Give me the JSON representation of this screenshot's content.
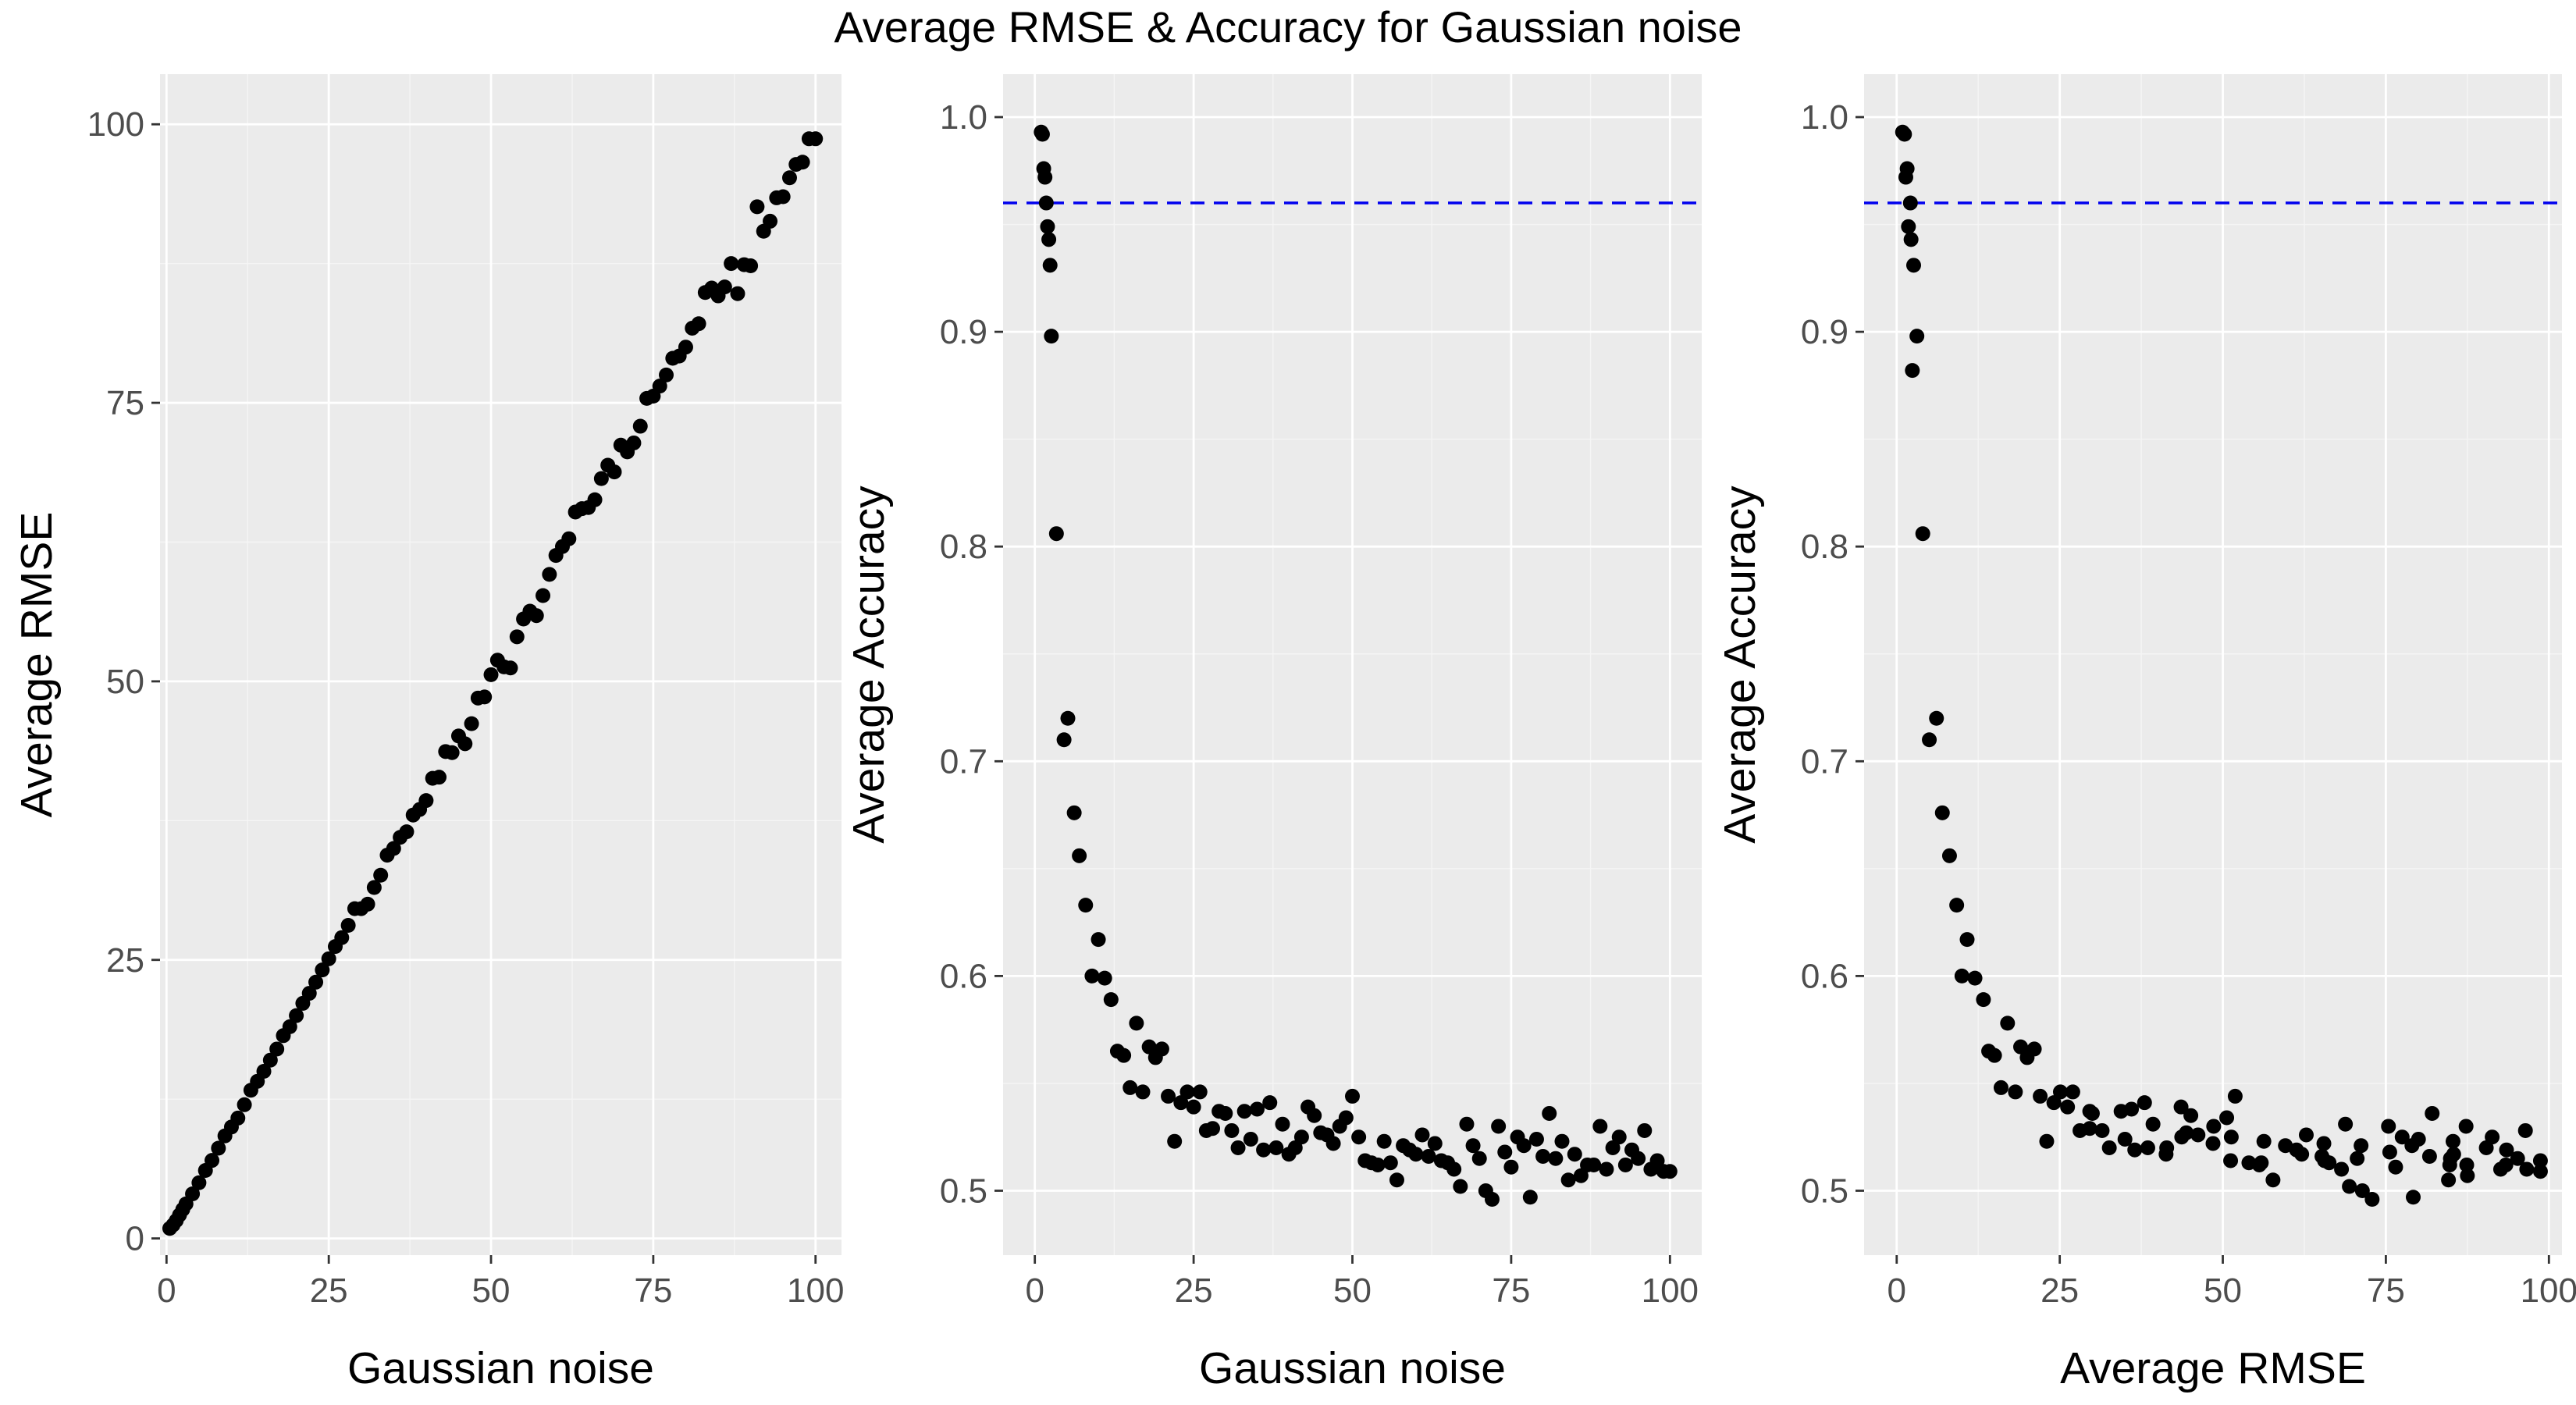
{
  "title": "Average RMSE & Accuracy for Gaussian noise",
  "colors": {
    "panel": "#ebebeb",
    "points": "#000000",
    "reference_line": "#0000ee",
    "text": "#4d4d4d"
  },
  "chart_data": [
    {
      "type": "scatter",
      "xlabel": "Gaussian noise",
      "ylabel": "Average RMSE",
      "xlim": [
        -1,
        104
      ],
      "ylim": [
        -1.5,
        104.5
      ],
      "xticks": [
        "0",
        "25",
        "50",
        "75",
        "100"
      ],
      "yticks": [
        "0",
        "25",
        "50",
        "75",
        "100"
      ],
      "grid": true,
      "points": {
        "x": [
          0.5,
          1,
          1.5,
          2,
          2.5,
          3,
          4,
          5,
          6,
          7,
          8,
          9,
          10,
          11,
          12,
          13,
          14,
          15,
          16,
          17,
          18,
          19,
          20,
          21,
          22,
          23,
          24,
          25,
          26,
          27,
          28,
          29,
          30,
          31,
          32,
          33,
          34,
          35,
          36,
          37,
          38,
          39,
          40,
          41,
          42,
          43,
          44,
          45,
          46,
          47,
          48,
          49,
          50,
          51,
          52,
          53,
          54,
          55,
          56,
          57,
          58,
          59,
          60,
          61,
          62,
          63,
          64,
          65,
          66,
          67,
          68,
          69,
          70,
          71,
          72,
          73,
          74,
          75,
          76,
          77,
          78,
          79,
          80,
          81,
          82,
          83,
          84,
          85,
          86,
          87,
          88,
          89,
          90,
          91,
          92,
          93,
          94,
          95,
          96,
          97,
          98,
          99,
          100
        ],
        "y": [
          0.9,
          1.2,
          1.6,
          2.1,
          2.6,
          3.1,
          4.0,
          5.0,
          6.1,
          7.0,
          8.1,
          9.2,
          10.0,
          10.8,
          12.0,
          13.3,
          14.1,
          15.0,
          16.0,
          17.0,
          18.2,
          19.0,
          20.0,
          21.1,
          22.0,
          23.0,
          24.1,
          25.1,
          26.2,
          27.0,
          28.1,
          29.6,
          29.6,
          30.0,
          31.5,
          32.6,
          34.4,
          35.0,
          36.0,
          36.5,
          38.0,
          38.5,
          39.3,
          41.3,
          41.4,
          43.7,
          43.6,
          45.1,
          44.4,
          46.2,
          48.5,
          48.6,
          50.6,
          51.9,
          51.3,
          51.2,
          54.0,
          55.6,
          56.3,
          55.9,
          57.7,
          59.6,
          61.3,
          62.1,
          62.8,
          65.2,
          65.5,
          65.6,
          66.3,
          68.2,
          69.4,
          68.8,
          71.2,
          70.6,
          71.4,
          72.9,
          75.4,
          75.6,
          76.5,
          77.5,
          79.0,
          79.2,
          80.0,
          81.7,
          82.1,
          84.9,
          85.3,
          84.6,
          85.4,
          87.5,
          84.8,
          87.4,
          87.3,
          92.6,
          90.4,
          91.3,
          93.4,
          93.5,
          95.2,
          96.4,
          96.6,
          98.7,
          98.7
        ]
      }
    },
    {
      "type": "scatter",
      "xlabel": "Gaussian noise",
      "ylabel": "Average Accuracy",
      "xlim": [
        -5,
        105
      ],
      "ylim": [
        0.47,
        1.02
      ],
      "xticks": [
        "0",
        "25",
        "50",
        "75",
        "100"
      ],
      "yticks": [
        "0.5",
        "0.6",
        "0.7",
        "0.8",
        "0.9",
        "1.0"
      ],
      "grid": true,
      "reference_line": {
        "orientation": "horizontal",
        "y": 0.96,
        "style": "dashed"
      },
      "points": {
        "x": [
          1,
          1.2,
          1.4,
          1.6,
          1.8,
          2,
          2.2,
          2.4,
          2.6,
          3.4,
          4.6,
          5.2,
          6.2,
          7,
          8,
          9,
          10,
          11,
          12,
          13,
          14,
          15,
          16,
          17,
          18,
          19,
          20,
          21,
          22,
          23,
          24,
          25,
          26,
          27,
          28,
          29,
          30,
          31,
          32,
          33,
          34,
          35,
          36,
          37,
          38,
          39,
          40,
          41,
          42,
          43,
          44,
          45,
          46,
          47,
          48,
          49,
          50,
          51,
          52,
          53,
          54,
          55,
          56,
          57,
          58,
          59,
          60,
          61,
          62,
          63,
          64,
          65,
          66,
          67,
          68,
          69,
          70,
          71,
          72,
          73,
          74,
          75,
          76,
          77,
          78,
          79,
          80,
          81,
          82,
          83,
          84,
          85,
          86,
          87,
          88,
          89,
          90,
          91,
          92,
          93,
          94,
          95,
          96,
          97,
          98,
          99,
          100
        ],
        "y": [
          0.993,
          0.992,
          0.976,
          0.972,
          0.96,
          0.949,
          0.943,
          0.931,
          0.898,
          0.806,
          0.71,
          0.72,
          0.676,
          0.656,
          0.633,
          0.6,
          0.617,
          0.599,
          0.589,
          0.565,
          0.563,
          0.548,
          0.578,
          0.546,
          0.567,
          0.562,
          0.566,
          0.544,
          0.523,
          0.541,
          0.546,
          0.539,
          0.546,
          0.528,
          0.529,
          0.537,
          0.536,
          0.528,
          0.52,
          0.537,
          0.524,
          0.538,
          0.519,
          0.541,
          0.52,
          0.531,
          0.517,
          0.52,
          0.525,
          0.539,
          0.535,
          0.527,
          0.526,
          0.522,
          0.53,
          0.534,
          0.544,
          0.525,
          0.514,
          0.513,
          0.512,
          0.523,
          0.513,
          0.505,
          0.521,
          0.519,
          0.517,
          0.526,
          0.516,
          0.522,
          0.514,
          0.513,
          0.51,
          0.502,
          0.531,
          0.521,
          0.515,
          0.5,
          0.496,
          0.53,
          0.518,
          0.511,
          0.525,
          0.521,
          0.497,
          0.524,
          0.516,
          0.536,
          0.515,
          0.523,
          0.505,
          0.517,
          0.507,
          0.512,
          0.512,
          0.53,
          0.51,
          0.52,
          0.525,
          0.512,
          0.519,
          0.515,
          0.528,
          0.51,
          0.514,
          0.509,
          0.509
        ]
      }
    },
    {
      "type": "scatter",
      "xlabel": "Average RMSE",
      "ylabel": "Average Accuracy",
      "xlim": [
        -5,
        102
      ],
      "ylim": [
        0.47,
        1.02
      ],
      "xticks": [
        "0",
        "25",
        "50",
        "75",
        "100"
      ],
      "yticks": [
        "0.5",
        "0.6",
        "0.7",
        "0.8",
        "0.9",
        "1.0"
      ],
      "grid": true,
      "reference_line": {
        "orientation": "horizontal",
        "y": 0.96,
        "style": "dashed"
      },
      "points": {
        "x": [
          0.9,
          1.2,
          1.6,
          2.1,
          2.6,
          3.1,
          4.0,
          5.0,
          6.1,
          7.0,
          8.1,
          9.2,
          10.0,
          10.8,
          12.0,
          13.3,
          14.1,
          15.0,
          16.0,
          17.0,
          18.2,
          19.0,
          20.0,
          21.1,
          22.0,
          23.0,
          24.1,
          25.1,
          26.2,
          27.0,
          28.1,
          29.6,
          29.6,
          30.0,
          31.5,
          32.6,
          34.4,
          35.0,
          36.0,
          36.5,
          38.0,
          38.5,
          39.3,
          41.3,
          41.4,
          43.7,
          43.6,
          45.1,
          44.4,
          46.2,
          48.5,
          48.6,
          50.6,
          51.9,
          51.3,
          51.2,
          54.0,
          55.6,
          56.3,
          55.9,
          57.7,
          59.6,
          61.3,
          62.1,
          62.8,
          65.2,
          65.5,
          65.6,
          66.3,
          68.2,
          69.4,
          68.8,
          71.2,
          70.6,
          71.4,
          72.9,
          75.4,
          75.6,
          76.5,
          77.5,
          79.0,
          79.2,
          80.0,
          81.7,
          82.1,
          84.9,
          85.3,
          84.6,
          85.4,
          87.5,
          84.8,
          87.4,
          87.3,
          92.6,
          90.4,
          91.3,
          93.4,
          93.5,
          95.2,
          96.4,
          96.6,
          98.7,
          98.7,
          1.4,
          1.8,
          2.2,
          2.4
        ],
        "y": [
          0.993,
          0.992,
          0.976,
          0.96,
          0.931,
          0.898,
          0.806,
          0.71,
          0.72,
          0.676,
          0.656,
          0.633,
          0.6,
          0.617,
          0.599,
          0.589,
          0.565,
          0.563,
          0.548,
          0.578,
          0.546,
          0.567,
          0.562,
          0.566,
          0.544,
          0.523,
          0.541,
          0.546,
          0.539,
          0.546,
          0.528,
          0.529,
          0.537,
          0.536,
          0.528,
          0.52,
          0.537,
          0.524,
          0.538,
          0.519,
          0.541,
          0.52,
          0.531,
          0.517,
          0.52,
          0.525,
          0.539,
          0.535,
          0.527,
          0.526,
          0.522,
          0.53,
          0.534,
          0.544,
          0.525,
          0.514,
          0.513,
          0.512,
          0.523,
          0.513,
          0.505,
          0.521,
          0.519,
          0.517,
          0.526,
          0.516,
          0.522,
          0.514,
          0.513,
          0.51,
          0.502,
          0.531,
          0.521,
          0.515,
          0.5,
          0.496,
          0.53,
          0.518,
          0.511,
          0.525,
          0.521,
          0.497,
          0.524,
          0.516,
          0.536,
          0.515,
          0.523,
          0.505,
          0.517,
          0.507,
          0.512,
          0.512,
          0.53,
          0.51,
          0.52,
          0.525,
          0.512,
          0.519,
          0.515,
          0.528,
          0.51,
          0.514,
          0.509,
          0.972,
          0.949,
          0.943,
          0.882
        ]
      }
    }
  ]
}
